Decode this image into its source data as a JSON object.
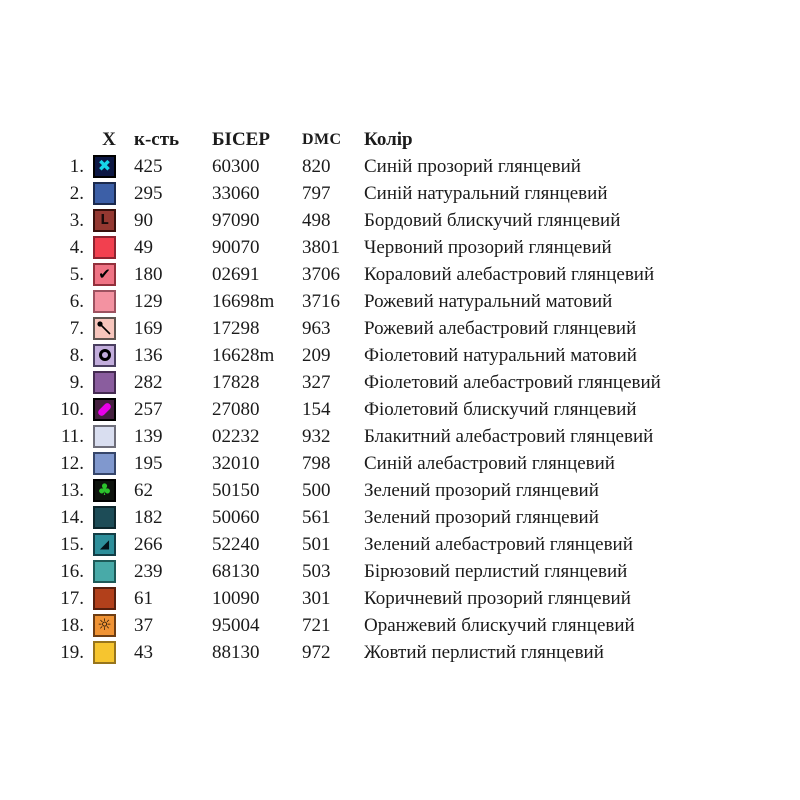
{
  "page": {
    "background": "#ffffff"
  },
  "table": {
    "headers": {
      "symbol": "X",
      "count": "к-сть",
      "bead": "БІСЕР",
      "dmc": "DMC",
      "color": "Колір"
    },
    "rows": [
      {
        "num": "1.",
        "count": "425",
        "bead": "60300",
        "dmc": "820",
        "name": "Синій прозорий глянцевий",
        "sw": {
          "bg": "#0c1743",
          "border": "#000000",
          "glyph": "cross-x",
          "glyph_color": "#17d6e8"
        }
      },
      {
        "num": "2.",
        "count": "295",
        "bead": "33060",
        "dmc": "797",
        "name": "Синій натуральний глянцевий",
        "sw": {
          "bg": "#3c5fa7",
          "border": "#1b2a4e"
        }
      },
      {
        "num": "3.",
        "count": "90",
        "bead": "97090",
        "dmc": "498",
        "name": "Бордовий блискучий глянцевий",
        "sw": {
          "bg": "#943831",
          "border": "#38100c",
          "glyph": "corner-l",
          "glyph_color": "#190b0b"
        }
      },
      {
        "num": "4.",
        "count": "49",
        "bead": "90070",
        "dmc": "3801",
        "name": "Червоний прозорий  глянцевий",
        "sw": {
          "bg": "#f2404f",
          "border": "#8e2330"
        }
      },
      {
        "num": "5.",
        "count": "180",
        "bead": "02691",
        "dmc": "3706",
        "name": "Кораловий алебастровий  глянцевий",
        "sw": {
          "bg": "#ef7384",
          "border": "#93303c",
          "glyph": "check",
          "glyph_color": "#000000"
        }
      },
      {
        "num": "6.",
        "count": "129",
        "bead": "16698m",
        "dmc": "3716",
        "name": "Рожевий натуральний матовий",
        "sw": {
          "bg": "#f392a1",
          "border": "#9d5260"
        }
      },
      {
        "num": "7.",
        "count": "169",
        "bead": "17298",
        "dmc": "963",
        "name": "Рожевий алебастровий  глянцевий",
        "sw": {
          "bg": "#f7c5bc",
          "border": "#5f5550",
          "glyph": "pin",
          "glyph_color": "#000000"
        }
      },
      {
        "num": "8.",
        "count": "136",
        "bead": "16628m",
        "dmc": "209",
        "name": "Фіолетовий натуральний матовий",
        "sw": {
          "bg": "#c2addc",
          "border": "#4a3f60",
          "glyph": "ring",
          "glyph_color": "#000000"
        }
      },
      {
        "num": "9.",
        "count": "282",
        "bead": "17828",
        "dmc": "327",
        "name": "Фіолетовий алебастровий глянцевий",
        "sw": {
          "bg": "#8a5d9e",
          "border": "#452c52"
        }
      },
      {
        "num": "10.",
        "count": "257",
        "bead": "27080",
        "dmc": "154",
        "name": "Фіолетовий блискучий  глянцевий",
        "sw": {
          "bg": "#44203f",
          "border": "#000000",
          "glyph": "stripe",
          "glyph_color": "#e900e9"
        }
      },
      {
        "num": "11.",
        "count": "139",
        "bead": "02232",
        "dmc": "932",
        "name": "Блакитний алебастровий  глянцевий",
        "sw": {
          "bg": "#d9def0",
          "border": "#6e6e7a"
        }
      },
      {
        "num": "12.",
        "count": "195",
        "bead": "32010",
        "dmc": "798",
        "name": "Синій алебастровий  глянцевий",
        "sw": {
          "bg": "#8098ce",
          "border": "#36466b"
        }
      },
      {
        "num": "13.",
        "count": "62",
        "bead": "50150",
        "dmc": "500",
        "name": "Зелений прозорий  глянцевий",
        "sw": {
          "bg": "#0e130e",
          "border": "#000000",
          "glyph": "clover",
          "glyph_color": "#2cc32c"
        }
      },
      {
        "num": "14.",
        "count": "182",
        "bead": "50060",
        "dmc": "561",
        "name": "Зелений прозорий  глянцевий",
        "sw": {
          "bg": "#1d4c57",
          "border": "#0d262c"
        }
      },
      {
        "num": "15.",
        "count": "266",
        "bead": "52240",
        "dmc": "501",
        "name": "Зелений алебастровий глянцевий",
        "sw": {
          "bg": "#2d8f9b",
          "border": "#133e46",
          "glyph": "triangle",
          "glyph_color": "#04121a"
        }
      },
      {
        "num": "16.",
        "count": "239",
        "bead": "68130",
        "dmc": "503",
        "name": "Бірюзовий перлистий глянцевий",
        "sw": {
          "bg": "#48aaa8",
          "border": "#1e5a58"
        }
      },
      {
        "num": "17.",
        "count": "61",
        "bead": "10090",
        "dmc": "301",
        "name": "Коричневий прозорий глянцевий",
        "sw": {
          "bg": "#b2401b",
          "border": "#571f0d"
        }
      },
      {
        "num": "18.",
        "count": "37",
        "bead": "95004",
        "dmc": "721",
        "name": "Оранжевий блискучий глянцевий",
        "sw": {
          "bg": "#f09334",
          "border": "#6e3d12",
          "glyph": "sun",
          "glyph_color": "#1a1208"
        }
      },
      {
        "num": "19.",
        "count": "43",
        "bead": "88130",
        "dmc": "972",
        "name": "Жовтий перлистий глянцевий",
        "sw": {
          "bg": "#f6c52f",
          "border": "#97751c"
        }
      }
    ]
  }
}
